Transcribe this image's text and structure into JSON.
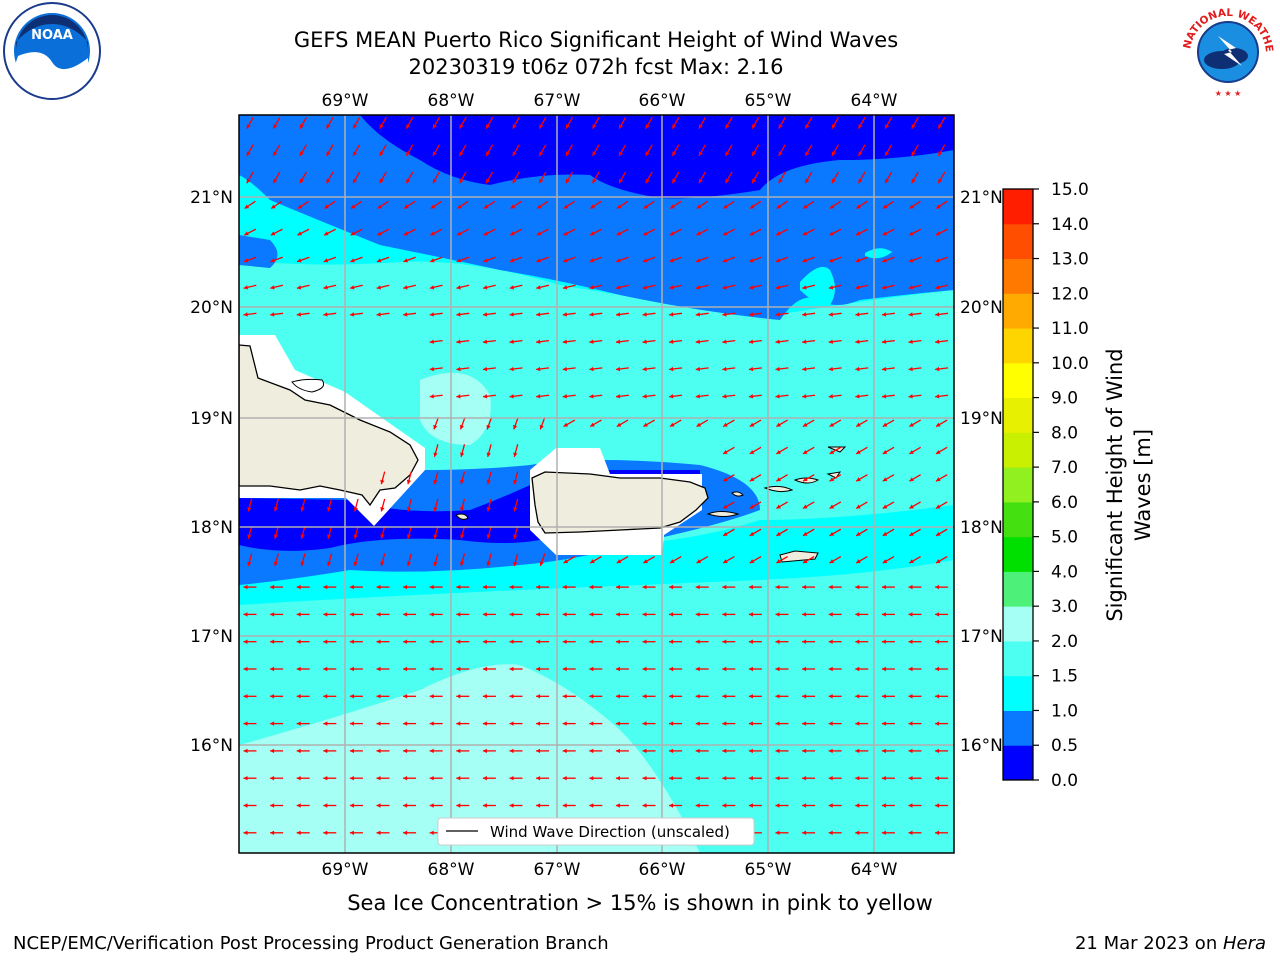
{
  "title": {
    "line1": "GEFS MEAN Puerto Rico Significant Height of Wind Waves",
    "line2": "20230319 t06z 072h fcst   Max: 2.16"
  },
  "map": {
    "lon_labels": [
      "69°W",
      "68°W",
      "67°W",
      "66°W",
      "65°W",
      "64°W"
    ],
    "lat_labels": [
      "21°N",
      "20°N",
      "19°N",
      "18°N",
      "17°N",
      "16°N"
    ],
    "legend_label": "Wind Wave Direction (unscaled)",
    "arrow_color": "#ff0000",
    "land_color": "#efedde"
  },
  "colorbar": {
    "label": "Significant Height of Wind Waves [m]",
    "label_line1": "Significant Height of Wind",
    "label_line2": "Waves [m]",
    "ticks": [
      "0.0",
      "0.5",
      "1.0",
      "1.5",
      "2.0",
      "3.0",
      "4.0",
      "5.0",
      "6.0",
      "7.0",
      "8.0",
      "9.0",
      "10.0",
      "11.0",
      "12.0",
      "13.0",
      "14.0",
      "15.0"
    ],
    "colors": [
      "#0000ff",
      "#0a78ff",
      "#00ffff",
      "#4dfff0",
      "#a6fff5",
      "#4df17a",
      "#00e000",
      "#44e010",
      "#90f020",
      "#c8f000",
      "#e6f000",
      "#ffff00",
      "#ffd500",
      "#ffaa00",
      "#ff7800",
      "#ff4e00",
      "#ff1e00",
      "#ff0000"
    ]
  },
  "notes": {
    "sea_ice": "Sea Ice Concentration > 15% is shown in pink to yellow",
    "footer_left": "NCEP/EMC/Verification Post Processing Product Generation Branch",
    "footer_right_prefix": "21 Mar 2023 on ",
    "footer_right_host": "Hera"
  },
  "logos": {
    "left": "noaa-logo",
    "right": "nws-logo",
    "right_text": "NATIONAL WEATHER SERVICE"
  }
}
